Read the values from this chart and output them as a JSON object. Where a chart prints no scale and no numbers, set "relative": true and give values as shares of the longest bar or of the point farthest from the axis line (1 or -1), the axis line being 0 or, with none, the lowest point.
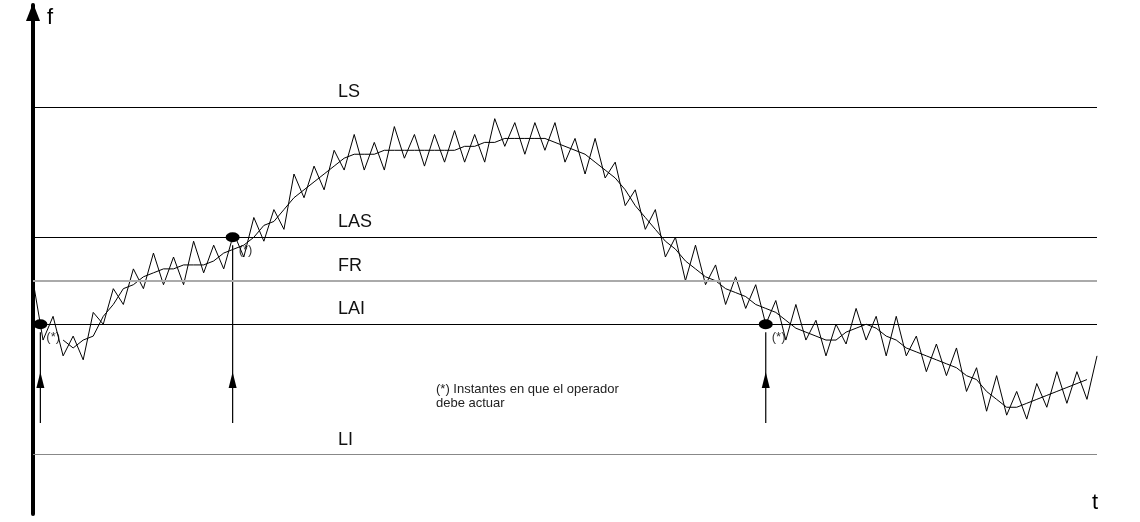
{
  "chart_data": {
    "type": "line",
    "relative": true,
    "xlabel": "t",
    "ylabel": "f",
    "categories": [
      null,
      null,
      null,
      null,
      null,
      null,
      null,
      null,
      null,
      null,
      null,
      null,
      null,
      null,
      null,
      null,
      null,
      null,
      null,
      null,
      null,
      null,
      null,
      null,
      null,
      null,
      null,
      null,
      null,
      null,
      null,
      null,
      null,
      null,
      null,
      null,
      null,
      null,
      null,
      null,
      null,
      null,
      null,
      null,
      null,
      null,
      null,
      null,
      null,
      null,
      null,
      null,
      null,
      null,
      null,
      null,
      null,
      null,
      null,
      null,
      null,
      null,
      null,
      null,
      null,
      null,
      null,
      null,
      null,
      null,
      null,
      null,
      null,
      null,
      null,
      null,
      null,
      null,
      null,
      null,
      null,
      null,
      null,
      null,
      null,
      null,
      null,
      null,
      null,
      null,
      null,
      null,
      null,
      null,
      null,
      null,
      null,
      null,
      null,
      null,
      null,
      null,
      null,
      null,
      null,
      null,
      null
    ],
    "series": [
      {
        "color": "#000000",
        "values": [
          0.59,
          0.44,
          0.5,
          0.4,
          0.45,
          0.39,
          0.51,
          0.48,
          0.57,
          0.53,
          0.62,
          0.57,
          0.66,
          0.58,
          0.65,
          0.58,
          0.69,
          0.61,
          0.68,
          0.62,
          0.71,
          0.65,
          0.75,
          0.69,
          0.77,
          0.72,
          0.86,
          0.8,
          0.88,
          0.82,
          0.92,
          0.87,
          0.96,
          0.87,
          0.94,
          0.87,
          0.98,
          0.9,
          0.96,
          0.88,
          0.96,
          0.89,
          0.97,
          0.89,
          0.96,
          0.89,
          1.0,
          0.93,
          0.99,
          0.91,
          0.99,
          0.92,
          0.99,
          0.89,
          0.95,
          0.86,
          0.95,
          0.85,
          0.89,
          0.78,
          0.82,
          0.72,
          0.77,
          0.65,
          0.7,
          0.59,
          0.68,
          0.58,
          0.63,
          0.53,
          0.6,
          0.52,
          0.58,
          0.48,
          0.54,
          0.44,
          0.53,
          0.44,
          0.49,
          0.4,
          0.48,
          0.43,
          0.52,
          0.44,
          0.5,
          0.4,
          0.5,
          0.4,
          0.45,
          0.36,
          0.43,
          0.35,
          0.42,
          0.31,
          0.37,
          0.26,
          0.35,
          0.25,
          0.31,
          0.24,
          0.33,
          0.27,
          0.36,
          0.28,
          0.36,
          0.29,
          0.4
        ]
      },
      {
        "color": "#000000",
        "values": [
          null,
          null,
          null,
          0.44,
          0.42,
          0.44,
          0.45,
          0.5,
          0.53,
          0.57,
          0.58,
          0.6,
          0.61,
          0.62,
          0.62,
          0.63,
          0.63,
          0.63,
          0.64,
          0.66,
          0.67,
          0.68,
          0.7,
          0.73,
          0.74,
          0.77,
          0.8,
          0.82,
          0.84,
          0.86,
          0.88,
          0.9,
          0.91,
          0.91,
          0.91,
          0.92,
          0.92,
          0.92,
          0.92,
          0.92,
          0.92,
          0.92,
          0.92,
          0.93,
          0.93,
          0.94,
          0.94,
          0.95,
          0.95,
          0.95,
          0.95,
          0.95,
          0.94,
          0.93,
          0.92,
          0.91,
          0.89,
          0.87,
          0.85,
          0.82,
          0.78,
          0.75,
          0.72,
          0.69,
          0.67,
          0.64,
          0.62,
          0.6,
          0.59,
          0.57,
          0.56,
          0.55,
          0.53,
          0.52,
          0.51,
          0.49,
          0.47,
          0.46,
          0.45,
          0.44,
          0.44,
          0.46,
          0.47,
          0.48,
          0.47,
          0.45,
          0.44,
          0.42,
          0.41,
          0.4,
          0.39,
          0.38,
          0.37,
          0.35,
          0.34,
          0.31,
          0.29,
          0.27,
          0.27,
          0.28,
          0.29,
          0.3,
          0.31,
          0.32,
          0.33,
          0.34,
          null
        ]
      }
    ],
    "ref_lines": [
      {
        "axis": "y",
        "value": 1.03,
        "label": "LS",
        "color": "#000000"
      },
      {
        "axis": "y",
        "value": 0.7,
        "label": "LAS",
        "color": "#000000"
      },
      {
        "axis": "y",
        "value": 0.59,
        "label": "FR",
        "color": "#aaaaaa"
      },
      {
        "axis": "y",
        "value": 0.48,
        "label": "LAI",
        "color": "#000000"
      },
      {
        "axis": "y",
        "value": 0.15,
        "label": "LI",
        "color": "#888888"
      }
    ],
    "annotations": [
      {
        "text": "(*)",
        "y": 0.48
      },
      {
        "text": "(*)",
        "y": 0.7
      },
      {
        "text": "(*)",
        "y": 0.48
      },
      "(*) Instantes en que el operador debe actuar"
    ],
    "marker": "none",
    "line_style": "solid",
    "grid": false
  }
}
